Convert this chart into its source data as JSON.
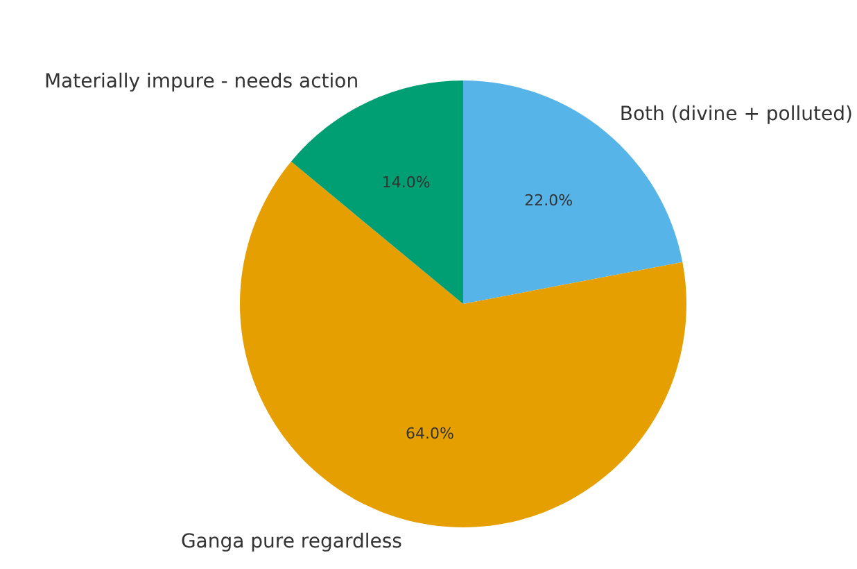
{
  "chart_data": {
    "type": "pie",
    "categories": [
      "Both (divine + polluted)",
      "Ganga pure regardless",
      "Materially impure - needs action"
    ],
    "values": [
      22,
      64,
      14
    ],
    "colors": [
      "#56b4e9",
      "#e69f00",
      "#009e73"
    ],
    "value_labels": [
      "22.0%",
      "64.0%",
      "14.0%"
    ]
  }
}
